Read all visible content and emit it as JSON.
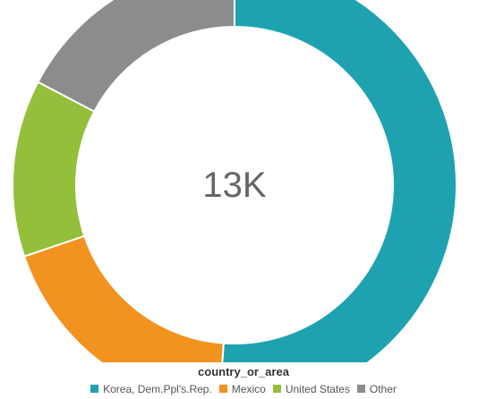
{
  "chart_data": {
    "type": "pie",
    "center_label": "13K",
    "legend": {
      "title": "country_or_area",
      "placement": "bottom"
    },
    "slices": [
      {
        "label": "Korea, Dem.Ppl's.Rep.",
        "value": 51.1,
        "color": "#1fa2b0"
      },
      {
        "label": "Mexico",
        "value": 18.7,
        "color": "#f2921f"
      },
      {
        "label": "United States",
        "value": 12.9,
        "color": "#94bf3a"
      },
      {
        "label": "Other",
        "value": 17.3,
        "color": "#8c8c8c"
      }
    ]
  }
}
